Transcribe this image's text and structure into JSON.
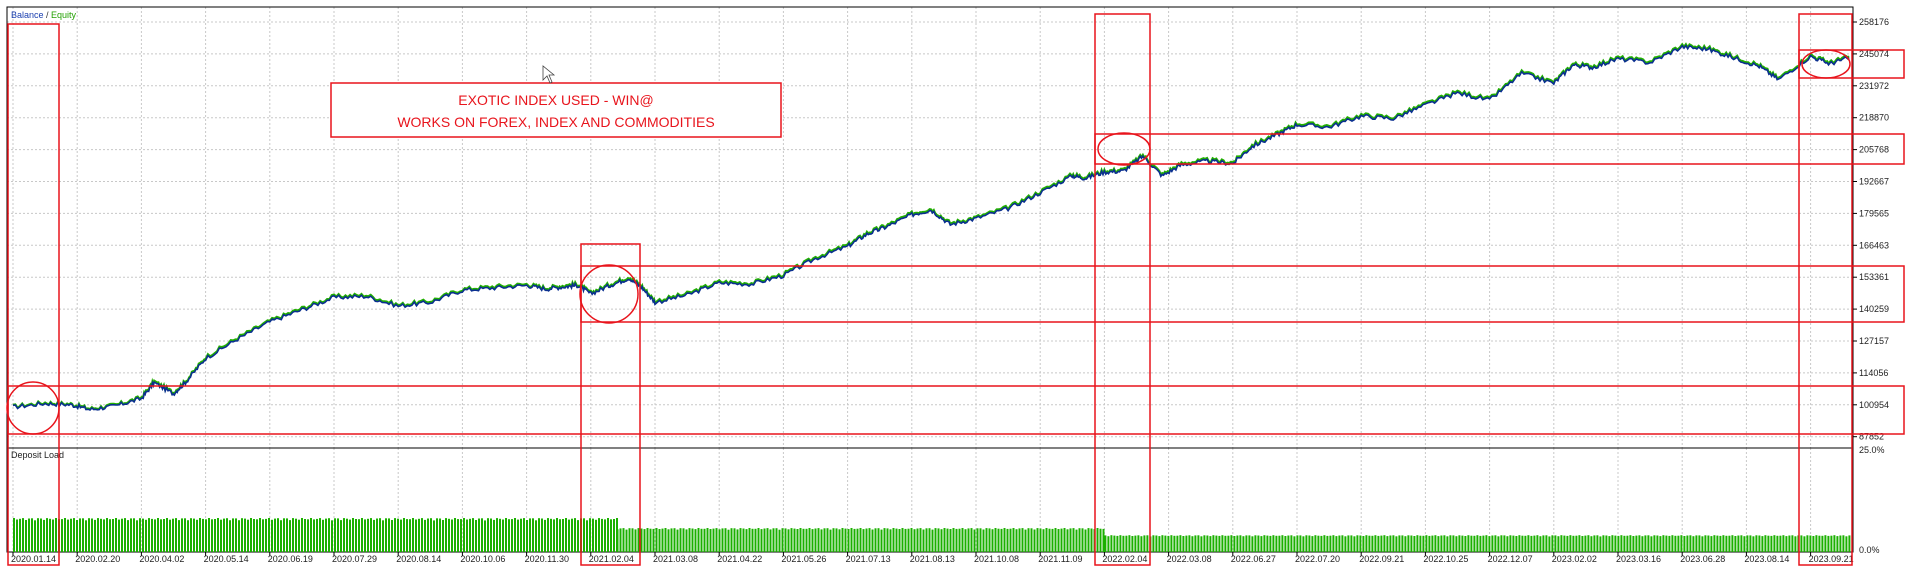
{
  "legend": {
    "balance": "Balance",
    "separator": " / ",
    "equity": "Equity"
  },
  "annotation": {
    "line1": "EXOTIC INDEX USED - WIN@",
    "line2": "WORKS ON FOREX, INDEX AND COMMODITIES"
  },
  "colors": {
    "balance": "#0a2f8f",
    "equity": "#22b000",
    "highlight": "#e8141c",
    "grid": "#c8c8c8",
    "deposit": "#1bb000",
    "legend_balance": "#1a3fb0",
    "legend_equity": "#22a000"
  },
  "chart_data": [
    {
      "type": "line",
      "title": "",
      "ylim": [
        87852,
        265000
      ],
      "y_ticks": [
        "258176",
        "245074",
        "231972",
        "218870",
        "205768",
        "192667",
        "179565",
        "166463",
        "153361",
        "140259",
        "127157",
        "114056",
        "100954",
        "87852"
      ],
      "x_ticks": [
        "2020.01.14",
        "2020.02.20",
        "2020.04.02",
        "2020.05.14",
        "2020.06.19",
        "2020.07.29",
        "2020.08.14",
        "2020.10.06",
        "2020.11.30",
        "2021.02.04",
        "2021.03.08",
        "2021.04.22",
        "2021.05.26",
        "2021.07.13",
        "2021.08.13",
        "2021.10.08",
        "2021.11.09",
        "2022.02.04",
        "2022.03.08",
        "2022.06.27",
        "2022.07.20",
        "2022.09.21",
        "2022.10.25",
        "2022.12.07",
        "2023.02.02",
        "2023.03.16",
        "2023.06.28",
        "2023.08.14",
        "2023.09.21"
      ],
      "x_index_range": [
        0,
        28.8
      ],
      "series": [
        {
          "name": "Balance",
          "x": [
            0,
            0.5,
            0.9,
            1.2,
            1.6,
            2.0,
            2.2,
            2.5,
            2.7,
            3.0,
            3.5,
            4.0,
            4.5,
            5.0,
            5.5,
            6.0,
            6.5,
            7.0,
            7.5,
            8.0,
            8.3,
            8.6,
            8.8,
            9.0,
            9.3,
            9.6,
            9.8,
            10.0,
            10.5,
            11.0,
            11.5,
            12.0,
            12.5,
            13.0,
            13.3,
            13.6,
            14.0,
            14.3,
            14.6,
            15.0,
            15.5,
            16.0,
            16.5,
            16.7,
            17.0,
            17.3,
            17.6,
            17.9,
            18.2,
            18.6,
            19.0,
            19.3,
            19.7,
            20.0,
            20.5,
            21.0,
            21.5,
            22.0,
            22.5,
            23.0,
            23.5,
            24.0,
            24.3,
            24.6,
            25.0,
            25.5,
            26.0,
            26.4,
            26.8,
            27.2,
            27.5,
            28.0,
            28.3,
            28.6
          ],
          "values": [
            100000,
            101500,
            101000,
            99000,
            100500,
            103500,
            110000,
            105500,
            110500,
            120000,
            128000,
            135000,
            140000,
            145000,
            145500,
            141500,
            143000,
            148000,
            149000,
            150000,
            148500,
            149500,
            150000,
            146500,
            150000,
            153000,
            149000,
            143000,
            146000,
            151000,
            150500,
            154000,
            161000,
            166000,
            171000,
            174000,
            179000,
            181000,
            175000,
            177500,
            181500,
            188000,
            195000,
            194000,
            196500,
            197000,
            203000,
            195000,
            199500,
            201000,
            200000,
            207000,
            212000,
            216000,
            215000,
            219500,
            218500,
            224000,
            229000,
            226000,
            237000,
            233000,
            240500,
            239500,
            243000,
            241500,
            248000,
            247000,
            243500,
            240000,
            234500,
            244000,
            241000,
            243500
          ]
        },
        {
          "name": "Equity",
          "x": [
            0,
            0.5,
            0.9,
            1.2,
            1.6,
            2.0,
            2.2,
            2.5,
            2.7,
            3.0,
            3.5,
            4.0,
            4.5,
            5.0,
            5.5,
            6.0,
            6.5,
            7.0,
            7.5,
            8.0,
            8.3,
            8.6,
            8.8,
            9.0,
            9.3,
            9.6,
            9.8,
            10.0,
            10.5,
            11.0,
            11.5,
            12.0,
            12.5,
            13.0,
            13.3,
            13.6,
            14.0,
            14.3,
            14.6,
            15.0,
            15.5,
            16.0,
            16.5,
            16.7,
            17.0,
            17.3,
            17.6,
            17.9,
            18.2,
            18.6,
            19.0,
            19.3,
            19.7,
            20.0,
            20.5,
            21.0,
            21.5,
            22.0,
            22.5,
            23.0,
            23.5,
            24.0,
            24.3,
            24.6,
            25.0,
            25.5,
            26.0,
            26.4,
            26.8,
            27.2,
            27.5,
            28.0,
            28.3,
            28.6
          ],
          "values": [
            100300,
            101900,
            101300,
            99400,
            100900,
            104000,
            110600,
            106000,
            111000,
            120600,
            128600,
            135500,
            140600,
            145500,
            146100,
            142000,
            143600,
            148500,
            149600,
            150500,
            149000,
            150100,
            150600,
            147000,
            150600,
            153600,
            149600,
            143600,
            146600,
            151600,
            151000,
            154600,
            161600,
            166600,
            171600,
            174600,
            179600,
            181600,
            175600,
            178000,
            182100,
            188600,
            195600,
            194600,
            197000,
            197600,
            203600,
            195600,
            200100,
            201600,
            200600,
            207600,
            212600,
            216600,
            215600,
            220100,
            219100,
            224600,
            229600,
            226600,
            237600,
            233600,
            241100,
            240100,
            243600,
            242100,
            248600,
            247600,
            244100,
            240600,
            235100,
            244600,
            241600,
            244100
          ]
        }
      ]
    },
    {
      "type": "bar",
      "title": "Deposit Load",
      "y_ticks": [
        "25.0%",
        "0.0%"
      ],
      "ylim": [
        0,
        25
      ],
      "segments": [
        {
          "x_from": 0,
          "x_to": 9.4,
          "value": 8.5
        },
        {
          "x_from": 9.4,
          "x_to": 17.0,
          "value": 6.0
        },
        {
          "x_from": 17.0,
          "x_to": 28.8,
          "value": 4.2
        }
      ]
    }
  ]
}
